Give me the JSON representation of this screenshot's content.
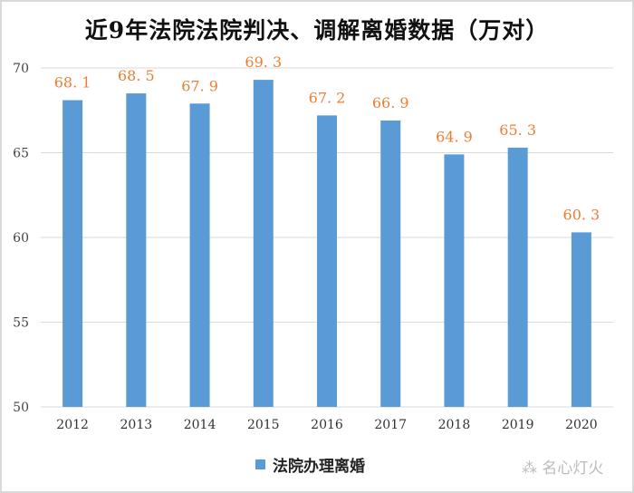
{
  "chart_data": {
    "type": "bar",
    "title": "近9年法院法院判决、调解离婚数据（万对）",
    "categories": [
      "2012",
      "2013",
      "2014",
      "2015",
      "2016",
      "2017",
      "2018",
      "2019",
      "2020"
    ],
    "series": [
      {
        "name": "法院办理离婚",
        "values": [
          68.1,
          68.5,
          67.9,
          69.3,
          67.2,
          66.9,
          64.9,
          65.3,
          60.3
        ],
        "color": "#5b9bd5"
      }
    ],
    "data_label_color": "#ed7d31",
    "ylim": [
      50,
      70
    ],
    "yticks": [
      50,
      55,
      60,
      65,
      70
    ],
    "grid": true,
    "legend": "bottom"
  },
  "watermark": "名心灯火"
}
